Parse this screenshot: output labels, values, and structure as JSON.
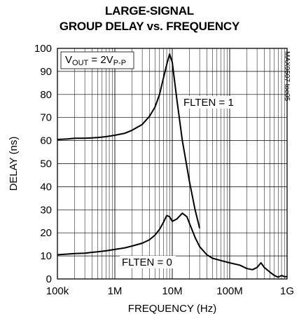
{
  "chart_data": {
    "type": "line",
    "title_line1": "LARGE-SIGNAL",
    "title_line2": "GROUP DELAY vs. FREQUENCY",
    "xlabel": "FREQUENCY (Hz)",
    "ylabel": "DELAY (ns)",
    "x_scale": "log",
    "xlim": [
      100000,
      1000000000
    ],
    "ylim": [
      0,
      100
    ],
    "x_ticks": [
      {
        "value": 100000,
        "label": "100k"
      },
      {
        "value": 1000000,
        "label": "1M"
      },
      {
        "value": 10000000,
        "label": "10M"
      },
      {
        "value": 100000000,
        "label": "100M"
      },
      {
        "value": 1000000000,
        "label": "1G"
      }
    ],
    "y_ticks": [
      {
        "value": 0,
        "label": "0"
      },
      {
        "value": 10,
        "label": "10"
      },
      {
        "value": 20,
        "label": "20"
      },
      {
        "value": 30,
        "label": "30"
      },
      {
        "value": 40,
        "label": "40"
      },
      {
        "value": 50,
        "label": "50"
      },
      {
        "value": 60,
        "label": "60"
      },
      {
        "value": 70,
        "label": "70"
      },
      {
        "value": 80,
        "label": "80"
      },
      {
        "value": 90,
        "label": "90"
      },
      {
        "value": 100,
        "label": "100"
      }
    ],
    "grid": true,
    "condition_label": "VOUT = 2VP-P",
    "figure_id": "MAX9507 toc05",
    "series": [
      {
        "name": "FLTEN = 1",
        "label": "FLTEN = 1",
        "color": "#000000",
        "x": [
          100000,
          150000,
          200000,
          300000,
          500000,
          700000,
          1000000,
          1500000,
          2000000,
          3000000,
          4000000,
          5000000,
          6000000,
          7000000,
          8000000,
          9000000,
          10000000,
          12000000,
          15000000,
          20000000,
          25000000,
          30000000
        ],
        "y": [
          60.5,
          60.7,
          61,
          61,
          61.3,
          61.7,
          62.3,
          63.2,
          64.5,
          67,
          70.5,
          74.5,
          80,
          87,
          93,
          97.5,
          94,
          78,
          60,
          42,
          30,
          22
        ]
      },
      {
        "name": "FLTEN = 0",
        "label": "FLTEN = 0",
        "color": "#000000",
        "x": [
          100000,
          150000,
          200000,
          300000,
          500000,
          700000,
          1000000,
          1500000,
          2000000,
          3000000,
          4000000,
          5000000,
          6000000,
          7000000,
          8000000,
          9000000,
          10000000,
          12000000,
          15000000,
          18000000,
          20000000,
          25000000,
          30000000,
          40000000,
          50000000,
          70000000,
          100000000,
          150000000,
          200000000,
          250000000,
          300000000,
          350000000,
          400000000,
          500000000,
          600000000,
          700000000,
          800000000,
          900000000,
          1000000000
        ],
        "y": [
          10.5,
          10.8,
          11,
          11.2,
          11.8,
          12.2,
          12.8,
          13.5,
          14.3,
          15.5,
          17,
          19,
          21.5,
          24.5,
          27.5,
          27,
          25,
          26,
          28.5,
          27,
          24,
          18,
          14,
          10.5,
          9,
          8,
          7,
          6,
          4.5,
          4,
          5,
          7,
          5,
          3,
          1.5,
          0.8,
          1.5,
          1,
          1
        ]
      }
    ],
    "annotations": [
      {
        "text": "FLTEN = 1",
        "series": "FLTEN = 1"
      },
      {
        "text": "FLTEN = 0",
        "series": "FLTEN = 0"
      }
    ]
  }
}
